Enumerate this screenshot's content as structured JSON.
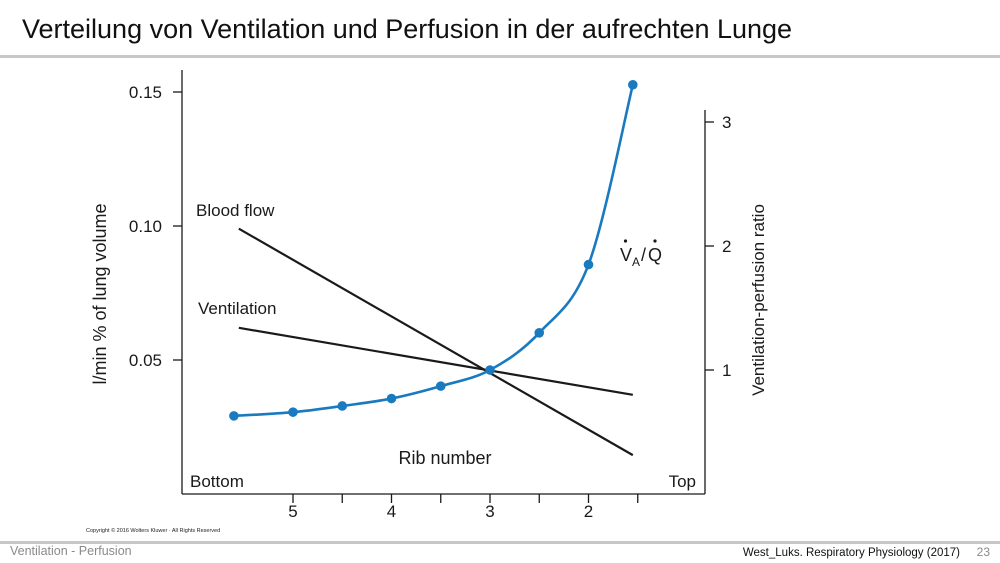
{
  "slide": {
    "title": "Verteilung von Ventilation und Perfusion in der aufrechten Lunge",
    "footer_left": "Ventilation - Perfusion",
    "footer_right": "West_Luks. Respiratory Physiology (2017)",
    "page_number": "23",
    "copyright": "Copyright © 2016 Wolters Kluwer · All Rights Reserved"
  },
  "chart_data": {
    "type": "line",
    "xlabel": "Rib number",
    "x_end_labels": {
      "left": "Bottom",
      "right": "Top"
    },
    "x_ticks": [
      "5",
      "4",
      "3",
      "2"
    ],
    "x_range_ribs": [
      5.5,
      1.5
    ],
    "left_axis": {
      "label": "l/min % of lung volume",
      "ticks": [
        "0.15",
        "0.10",
        "0.05"
      ],
      "tick_values": [
        0.15,
        0.1,
        0.05
      ],
      "ylim": [
        0,
        0.15
      ]
    },
    "right_axis": {
      "label": "Ventilation-perfusion ratio",
      "ticks": [
        "3",
        "2",
        "1"
      ],
      "tick_values": [
        3,
        2,
        1
      ],
      "ylim": [
        0,
        3
      ]
    },
    "series": [
      {
        "name": "Blood flow",
        "axis": "left",
        "color": "#1a1a1a",
        "x": [
          5.55,
          1.55
        ],
        "y": [
          0.099,
          0.0145
        ]
      },
      {
        "name": "Ventilation",
        "axis": "left",
        "color": "#1a1a1a",
        "x": [
          5.55,
          1.55
        ],
        "y": [
          0.062,
          0.037
        ]
      },
      {
        "name": "VA/Q",
        "axis": "right",
        "color": "#1a7abf",
        "markers": true,
        "x": [
          5.6,
          5.0,
          4.5,
          4.0,
          3.5,
          3.0,
          2.5,
          2.0,
          1.55
        ],
        "y": [
          0.63,
          0.66,
          0.71,
          0.77,
          0.87,
          1.0,
          1.3,
          1.85,
          3.3
        ]
      }
    ],
    "annotations": {
      "vaq_label": "V̇A/Q̇",
      "vaq_main": "V",
      "vaq_sub": "A",
      "vaq_q": "Q"
    }
  }
}
